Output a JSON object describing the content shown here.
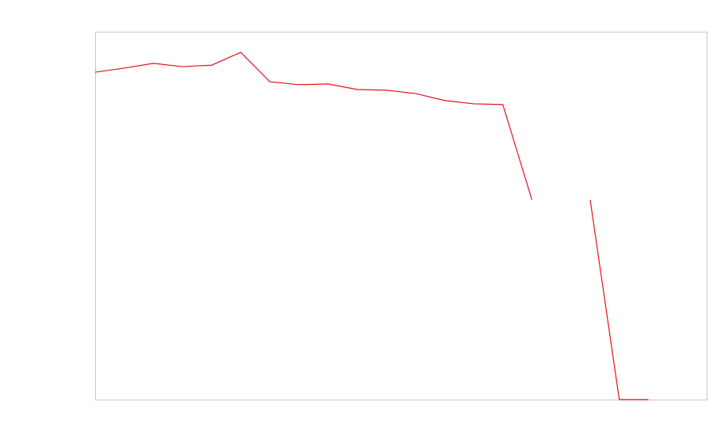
{
  "chart_data": {
    "type": "line",
    "x": [
      0,
      1,
      2,
      3,
      4,
      5,
      6,
      7,
      8,
      9,
      10,
      11,
      12,
      13,
      14,
      15,
      16,
      17,
      18,
      19
    ],
    "series": [
      {
        "color": "#e8101e",
        "values": [
          89.0,
          90.1,
          91.4,
          90.5,
          90.9,
          94.4,
          86.4,
          85.6,
          85.8,
          84.3,
          84.1,
          83.2,
          81.3,
          80.4,
          80.2,
          54.3,
          null,
          54.3,
          0,
          0
        ]
      }
    ],
    "xlim": [
      0,
      21
    ],
    "ylim": [
      0,
      100
    ],
    "frame_color": "#c8c8c8"
  }
}
